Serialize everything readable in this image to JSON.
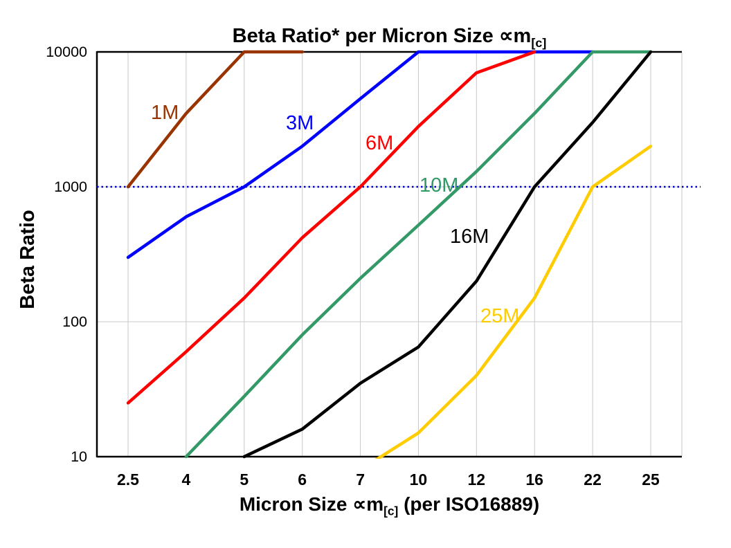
{
  "title": {
    "main": "Beta Ratio* per Micron Size ",
    "symbol": "∝m",
    "subscript": "[c]"
  },
  "y_axis": {
    "title": "Beta Ratio",
    "tick_labels": [
      "10000",
      "1000",
      "100",
      "10"
    ]
  },
  "x_axis": {
    "title_prefix": "Micron Size ",
    "title_symbol": "∝m",
    "title_subscript": "[c]",
    "title_suffix": " (per ISO16889)",
    "tick_labels": [
      "2.5",
      "4",
      "5",
      "6",
      "7",
      "10",
      "12",
      "16",
      "22",
      "25"
    ]
  },
  "reference_line": {
    "value": 1000,
    "color": "#0000CC",
    "style": "dotted"
  },
  "style": {
    "grid_color": "#C8C8C8",
    "axis_color": "#000000",
    "background": "#FFFFFF"
  },
  "chart_data": {
    "type": "line",
    "title": "Beta Ratio* per Micron Size ∝m[c]",
    "xlabel": "Micron Size ∝m[c] (per ISO16889)",
    "ylabel": "Beta Ratio",
    "x_scale": "category",
    "y_scale": "log",
    "ylim": [
      10,
      10000
    ],
    "grid": true,
    "legend": "inline-labels",
    "categories": [
      "2.5",
      "4",
      "5",
      "6",
      "7",
      "10",
      "12",
      "16",
      "22",
      "25"
    ],
    "reference_line_y": 1000,
    "series": [
      {
        "name": "1M",
        "color": "#993300",
        "values": [
          1000,
          3500,
          10000,
          10000,
          null,
          null,
          null,
          null,
          null,
          null
        ],
        "label_xy": [
          218,
          172
        ]
      },
      {
        "name": "3M",
        "color": "#0000FF",
        "values": [
          300,
          600,
          1000,
          2000,
          4500,
          10000,
          10000,
          10000,
          10000,
          null
        ],
        "label_xy": [
          413,
          187
        ]
      },
      {
        "name": "6M",
        "color": "#FF0000",
        "values": [
          25,
          60,
          150,
          420,
          1000,
          2800,
          7000,
          10000,
          null,
          null
        ],
        "label_xy": [
          528,
          216
        ]
      },
      {
        "name": "10M",
        "color": "#339966",
        "values": [
          null,
          10,
          28,
          80,
          210,
          520,
          1300,
          3500,
          10000,
          10000
        ],
        "label_xy": [
          606,
          277
        ]
      },
      {
        "name": "16M",
        "color": "#000000",
        "values": [
          null,
          null,
          10,
          16,
          35,
          65,
          200,
          1000,
          3000,
          10000
        ],
        "label_xy": [
          650,
          351
        ]
      },
      {
        "name": "25M",
        "color": "#FFCC00",
        "values": [
          null,
          null,
          null,
          null,
          8,
          15,
          40,
          150,
          1000,
          2000
        ],
        "label_xy": [
          694,
          466
        ]
      }
    ]
  }
}
